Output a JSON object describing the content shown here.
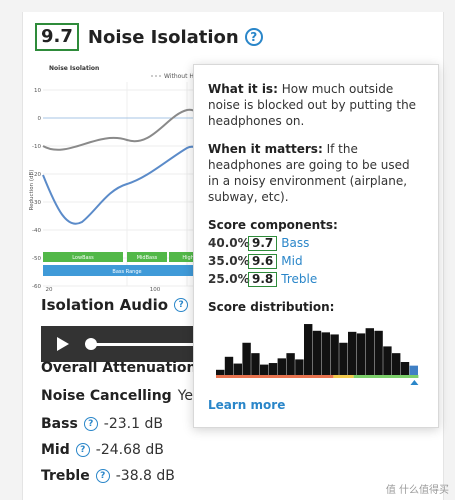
{
  "header": {
    "score": "9.7",
    "title": "Noise Isolation",
    "help_symbol": "?"
  },
  "graph": {
    "title": "Noise Isolation",
    "legend_text": "Without He",
    "y_axis_label": "Reduction (dB)",
    "y_ticks": [
      "10",
      "0",
      "-10",
      "-20",
      "-30",
      "-40",
      "-50",
      "-60"
    ],
    "x_ticks": [
      "20",
      "100"
    ],
    "band_labels": [
      "LowBass",
      "MidBass",
      "HighBass"
    ],
    "range_label": "Bass Range"
  },
  "isolation_audio": {
    "title": "Isolation Audio"
  },
  "overall_attenuation": {
    "label": "Overall Attenuation"
  },
  "noise_cancelling": {
    "label": "Noise Cancelling",
    "value": "Yes"
  },
  "measurements": [
    {
      "label": "Bass",
      "value": "-23.1 dB"
    },
    {
      "label": "Mid",
      "value": "-24.68 dB"
    },
    {
      "label": "Treble",
      "value": "-38.8 dB"
    }
  ],
  "tooltip": {
    "what_heading": "What it is:",
    "what_text": "How much outside noise is blocked out by putting the headphones on.",
    "when_heading": "When it matters:",
    "when_text": "If the headphones are going to be used in a noisy environment (airplane, subway, etc).",
    "components_heading": "Score components:",
    "components": [
      {
        "pct": "40.0%",
        "score": "9.7",
        "name": "Bass"
      },
      {
        "pct": "35.0%",
        "score": "9.6",
        "name": "Mid"
      },
      {
        "pct": "25.0%",
        "score": "9.8",
        "name": "Treble"
      }
    ],
    "distribution_heading": "Score distribution:",
    "distribution_bars": [
      0.1,
      0.35,
      0.22,
      0.62,
      0.42,
      0.2,
      0.23,
      0.32,
      0.42,
      0.3,
      0.98,
      0.85,
      0.82,
      0.78,
      0.62,
      0.83,
      0.8,
      0.9,
      0.85,
      0.55,
      0.42,
      0.25,
      0.18
    ],
    "learn_more": "Learn more"
  },
  "watermark": "值 什么值得买",
  "colors": {
    "score_green": "#2e8b3a",
    "link_blue": "#2a86c9",
    "band_green": "#52b848",
    "band_blue": "#3f9ad8"
  }
}
